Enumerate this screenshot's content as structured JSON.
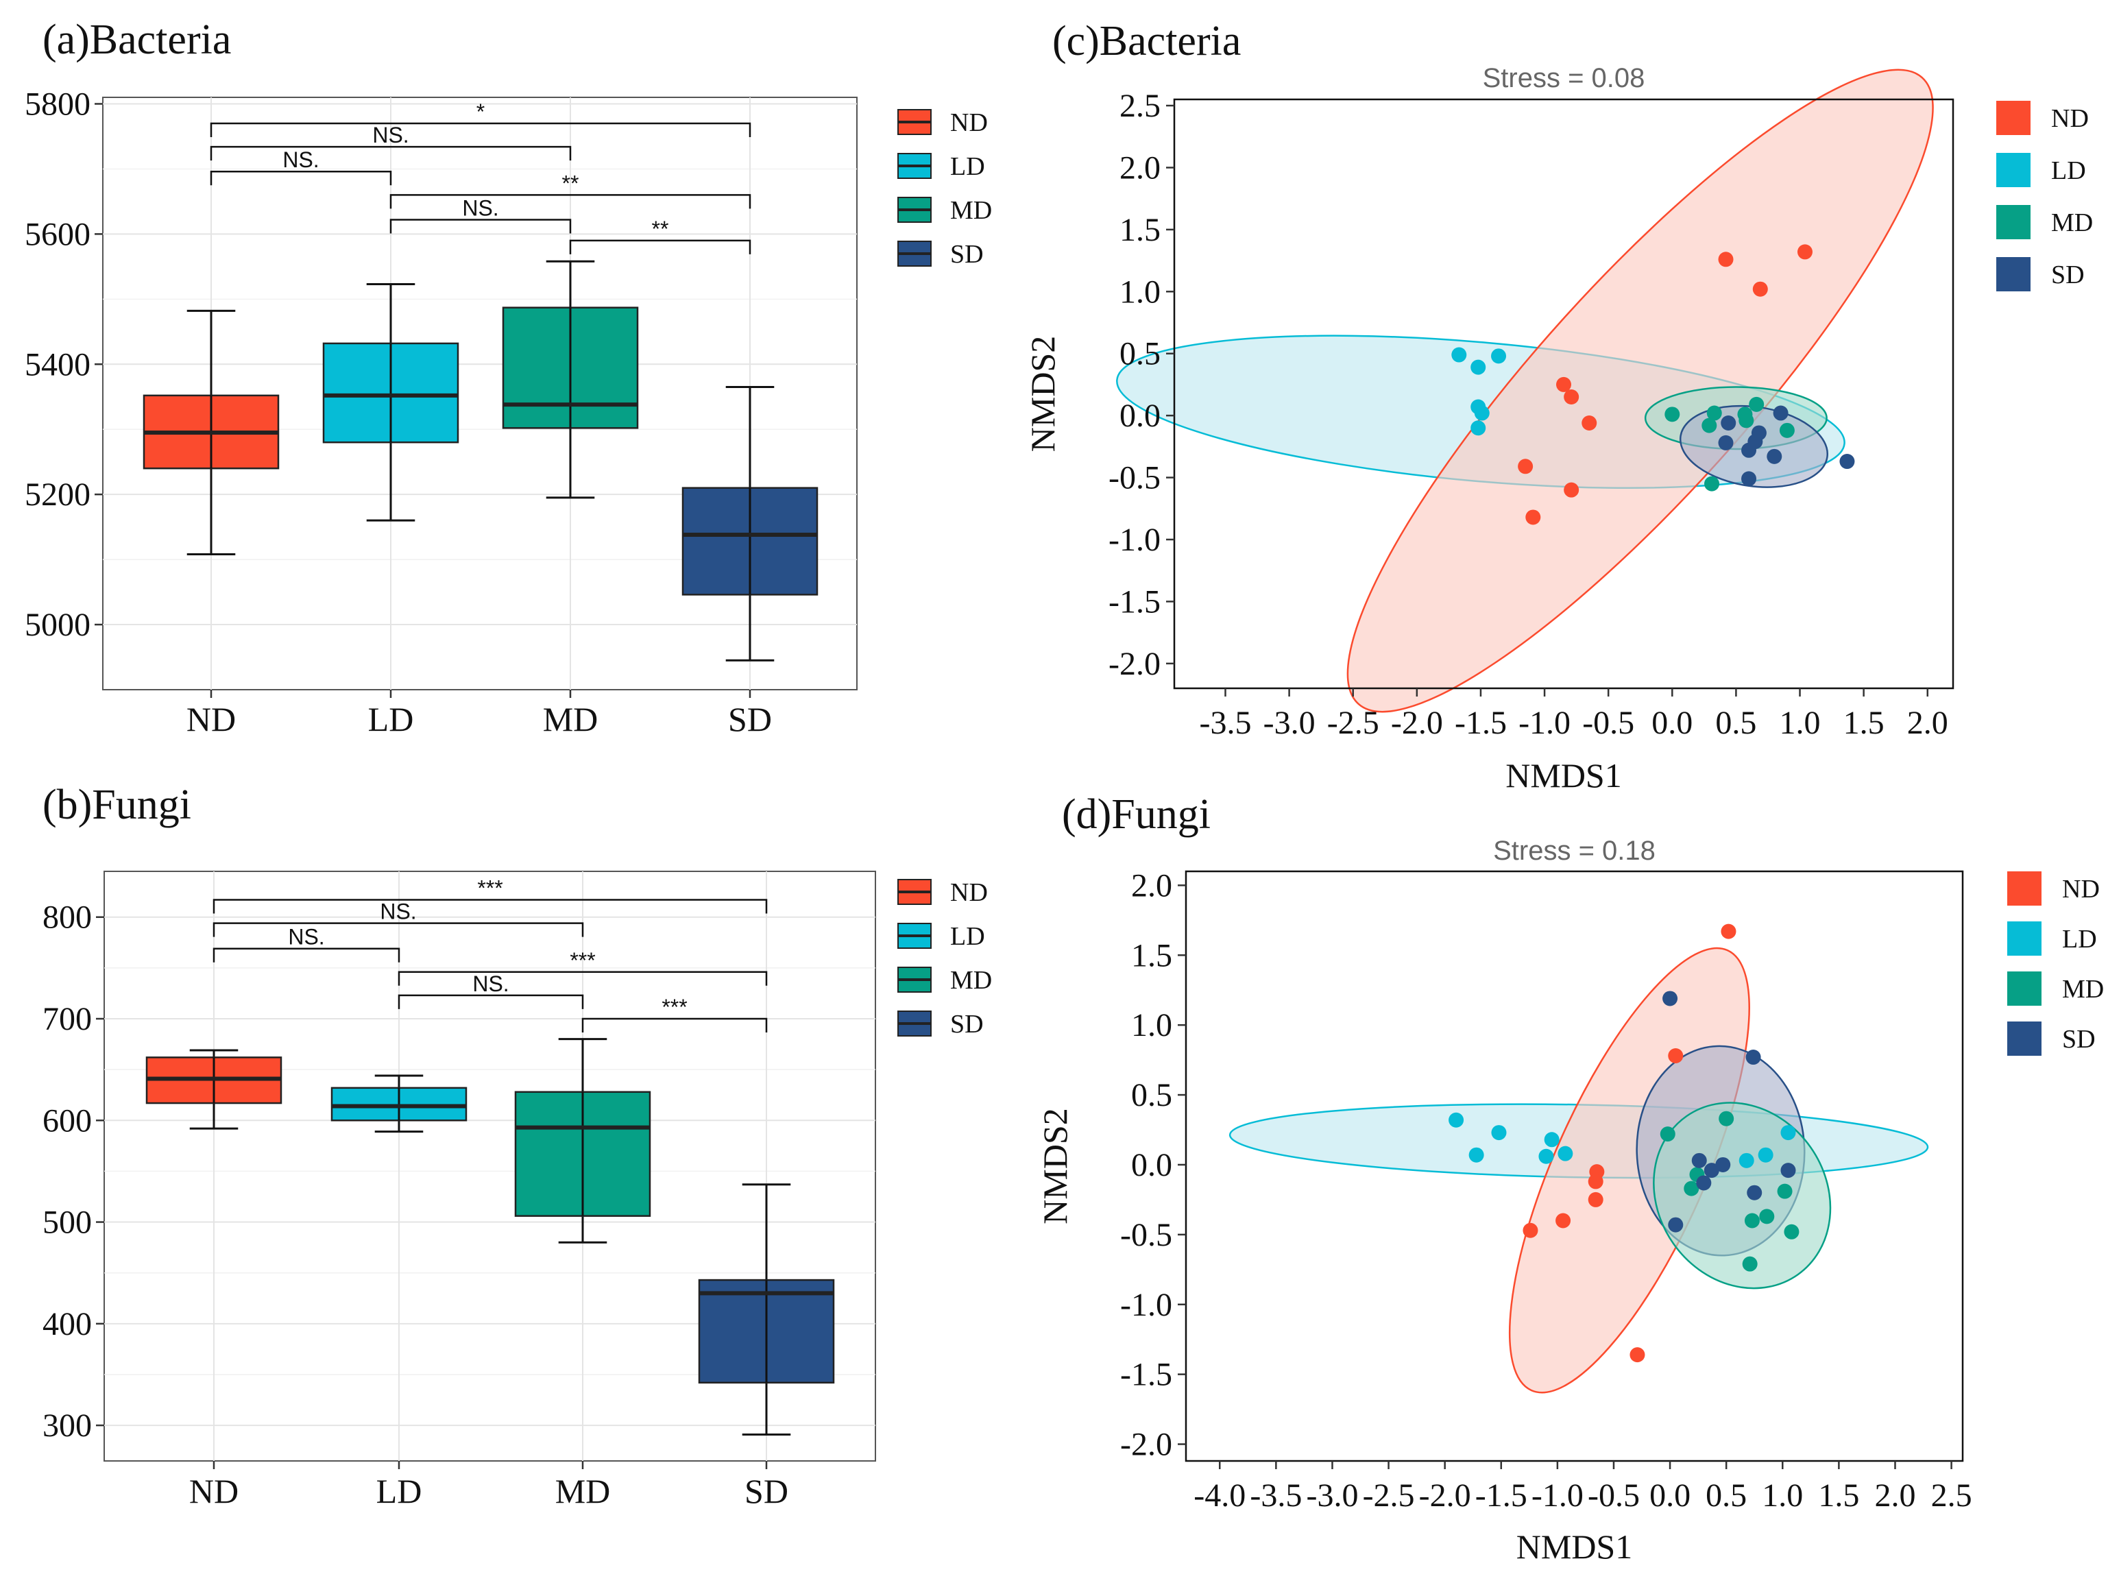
{
  "colors": {
    "ND": "#fb4b2e",
    "LD": "#06bcd6",
    "MD": "#06a086",
    "SD": "#285088",
    "ND_fill": "#fbc9c0",
    "LD_fill": "#bfe9f1",
    "MD_fill": "#a3dccb",
    "SD_fill": "#a9b2cc"
  },
  "legend_labels": [
    "ND",
    "LD",
    "MD",
    "SD"
  ],
  "panels": {
    "a": {
      "title": "(a)Bacteria"
    },
    "b": {
      "title": "(b)Fungi"
    },
    "c": {
      "title": "(c)Bacteria"
    },
    "d": {
      "title": "(d)Fungi"
    }
  },
  "chart_data": [
    {
      "id": "a",
      "type": "box",
      "title": "(a)Bacteria",
      "categories": [
        "ND",
        "LD",
        "MD",
        "SD"
      ],
      "ylim": [
        4900,
        5810
      ],
      "yticks": [
        5000,
        5200,
        5400,
        5600,
        5800
      ],
      "boxes": [
        {
          "group": "ND",
          "min": 5108,
          "q1": 5240,
          "median": 5295,
          "q3": 5352,
          "max": 5482
        },
        {
          "group": "LD",
          "min": 5160,
          "q1": 5280,
          "median": 5352,
          "q3": 5432,
          "max": 5523
        },
        {
          "group": "MD",
          "min": 5195,
          "q1": 5302,
          "median": 5338,
          "q3": 5487,
          "max": 5558
        },
        {
          "group": "SD",
          "min": 4945,
          "q1": 5046,
          "median": 5138,
          "q3": 5210,
          "max": 5365
        }
      ],
      "comparisons": [
        {
          "from": 0,
          "to": 1,
          "y": 5696,
          "label": "NS."
        },
        {
          "from": 0,
          "to": 2,
          "y": 5734,
          "label": "NS."
        },
        {
          "from": 0,
          "to": 3,
          "y": 5770,
          "label": "*"
        },
        {
          "from": 1,
          "to": 2,
          "y": 5622,
          "label": "NS."
        },
        {
          "from": 1,
          "to": 3,
          "y": 5660,
          "label": "**"
        },
        {
          "from": 2,
          "to": 3,
          "y": 5590,
          "label": "**"
        }
      ]
    },
    {
      "id": "b",
      "type": "box",
      "title": "(b)Fungi",
      "categories": [
        "ND",
        "LD",
        "MD",
        "SD"
      ],
      "ylim": [
        265,
        845
      ],
      "yticks": [
        300,
        400,
        500,
        600,
        700,
        800
      ],
      "boxes": [
        {
          "group": "ND",
          "min": 592,
          "q1": 617,
          "median": 641,
          "q3": 662,
          "max": 669
        },
        {
          "group": "LD",
          "min": 589,
          "q1": 600,
          "median": 614,
          "q3": 632,
          "max": 644
        },
        {
          "group": "MD",
          "min": 480,
          "q1": 506,
          "median": 593,
          "q3": 628,
          "max": 680
        },
        {
          "group": "SD",
          "min": 291,
          "q1": 342,
          "median": 430,
          "q3": 443,
          "max": 537
        }
      ],
      "comparisons": [
        {
          "from": 0,
          "to": 1,
          "y": 769,
          "label": "NS."
        },
        {
          "from": 0,
          "to": 2,
          "y": 794,
          "label": "NS."
        },
        {
          "from": 0,
          "to": 3,
          "y": 817,
          "label": "***"
        },
        {
          "from": 1,
          "to": 2,
          "y": 723,
          "label": "NS."
        },
        {
          "from": 1,
          "to": 3,
          "y": 746,
          "label": "***"
        },
        {
          "from": 2,
          "to": 3,
          "y": 700,
          "label": "***"
        }
      ]
    },
    {
      "id": "c",
      "type": "scatter",
      "title": "(c)Bacteria",
      "stress_label": "Stress = 0.08",
      "xlabel": "NMDS1",
      "ylabel": "NMDS2",
      "xlim": [
        -3.9,
        2.2
      ],
      "ylim": [
        -2.2,
        2.55
      ],
      "xticks": [
        -3.5,
        -3.0,
        -2.5,
        -2.0,
        -1.5,
        -1.0,
        -0.5,
        0.0,
        0.5,
        1.0,
        1.5,
        2.0
      ],
      "xtick_labels": [
        "-3.5",
        "-3.0",
        "-2.5",
        "-2.0",
        "-1.5",
        "-1.0",
        "-0.5",
        "0.0",
        "0.5",
        "1.0",
        "1.5",
        "2.0"
      ],
      "yticks": [
        -2.0,
        -1.5,
        -1.0,
        -0.5,
        0.0,
        0.5,
        1.0,
        1.5,
        2.0,
        2.5
      ],
      "ytick_labels": [
        "-2.0",
        "-1.5",
        "-1.0",
        "-0.5",
        "0.0",
        "0.5",
        "1.0",
        "1.5",
        "2.0",
        "2.5"
      ],
      "ellipses": [
        {
          "group": "LD",
          "cx": -1.5,
          "cy": 0.03,
          "rx": 2.86,
          "ry": 0.56,
          "angle": -5
        },
        {
          "group": "ND",
          "cx": -0.25,
          "cy": 0.2,
          "rx": 3.3,
          "ry": 0.85,
          "angle": 48
        },
        {
          "group": "MD",
          "cx": 0.5,
          "cy": -0.02,
          "rx": 0.71,
          "ry": 0.25,
          "angle": 0
        },
        {
          "group": "SD",
          "cx": 0.64,
          "cy": -0.25,
          "rx": 0.58,
          "ry": 0.32,
          "angle": -8
        }
      ],
      "series": [
        {
          "name": "ND",
          "points": [
            [
              0.42,
              1.26
            ],
            [
              1.04,
              1.32
            ],
            [
              0.69,
              1.02
            ],
            [
              -0.85,
              0.25
            ],
            [
              -0.79,
              0.15
            ],
            [
              -0.65,
              -0.06
            ],
            [
              -1.15,
              -0.41
            ],
            [
              -0.79,
              -0.6
            ],
            [
              -1.09,
              -0.82
            ]
          ]
        },
        {
          "name": "LD",
          "points": [
            [
              -1.67,
              0.49
            ],
            [
              -1.52,
              0.39
            ],
            [
              -1.36,
              0.48
            ],
            [
              -1.52,
              0.07
            ],
            [
              -1.49,
              0.02
            ],
            [
              -1.52,
              -0.1
            ]
          ]
        },
        {
          "name": "MD",
          "points": [
            [
              0.0,
              0.01
            ],
            [
              0.33,
              0.02
            ],
            [
              0.57,
              0.01
            ],
            [
              0.66,
              0.09
            ],
            [
              0.29,
              -0.08
            ],
            [
              0.58,
              -0.04
            ],
            [
              0.9,
              -0.12
            ],
            [
              0.31,
              -0.55
            ]
          ]
        },
        {
          "name": "SD",
          "points": [
            [
              0.44,
              -0.06
            ],
            [
              0.85,
              0.02
            ],
            [
              0.68,
              -0.14
            ],
            [
              0.65,
              -0.21
            ],
            [
              0.42,
              -0.22
            ],
            [
              0.6,
              -0.28
            ],
            [
              0.8,
              -0.33
            ],
            [
              1.37,
              -0.37
            ],
            [
              0.6,
              -0.51
            ]
          ]
        }
      ]
    },
    {
      "id": "d",
      "type": "scatter",
      "title": "(d)Fungi",
      "stress_label": "Stress = 0.18",
      "xlabel": "NMDS1",
      "ylabel": "NMDS2",
      "xlim": [
        -4.3,
        2.6
      ],
      "ylim": [
        -2.12,
        2.1
      ],
      "xticks": [
        -4.0,
        -3.5,
        -3.0,
        -2.5,
        -2.0,
        -1.5,
        -1.0,
        -0.5,
        0.0,
        0.5,
        1.0,
        1.5,
        2.0,
        2.5
      ],
      "xtick_labels": [
        "-4.0",
        "-3.5",
        "-3.0",
        "-2.5",
        "-2.0",
        "-1.5",
        "-1.0",
        "-0.5",
        "0.0",
        "0.5",
        "1.0",
        "1.5",
        "2.0",
        "2.5"
      ],
      "yticks": [
        -2.0,
        -1.5,
        -1.0,
        -0.5,
        0.0,
        0.5,
        1.0,
        1.5,
        2.0
      ],
      "ytick_labels": [
        "-2.0",
        "-1.5",
        "-1.0",
        "-0.5",
        "0.0",
        "0.5",
        "1.0",
        "1.5",
        "2.0"
      ],
      "ellipses": [
        {
          "group": "LD",
          "cx": -0.81,
          "cy": 0.17,
          "rx": 3.1,
          "ry": 0.26,
          "angle": -1
        },
        {
          "group": "ND",
          "cx": -0.36,
          "cy": -0.04,
          "rx": 2.14,
          "ry": 0.54,
          "angle": 66
        },
        {
          "group": "SD",
          "cx": 0.45,
          "cy": 0.1,
          "rx": 0.93,
          "ry": 0.6,
          "angle": 92
        },
        {
          "group": "MD",
          "cx": 0.64,
          "cy": -0.22,
          "rx": 0.86,
          "ry": 0.6,
          "angle": -55
        }
      ],
      "series": [
        {
          "name": "ND",
          "points": [
            [
              0.52,
              1.67
            ],
            [
              0.05,
              0.78
            ],
            [
              -0.65,
              -0.05
            ],
            [
              -0.66,
              -0.12
            ],
            [
              -0.66,
              -0.25
            ],
            [
              -0.95,
              -0.4
            ],
            [
              -1.24,
              -0.47
            ],
            [
              -0.29,
              -1.36
            ]
          ]
        },
        {
          "name": "LD",
          "points": [
            [
              -1.9,
              0.32
            ],
            [
              -1.72,
              0.07
            ],
            [
              -1.52,
              0.23
            ],
            [
              -1.05,
              0.18
            ],
            [
              -1.1,
              0.06
            ],
            [
              -0.93,
              0.08
            ],
            [
              0.68,
              0.03
            ],
            [
              0.85,
              0.07
            ],
            [
              1.05,
              0.23
            ]
          ]
        },
        {
          "name": "MD",
          "points": [
            [
              -0.02,
              0.22
            ],
            [
              0.5,
              0.33
            ],
            [
              0.19,
              -0.17
            ],
            [
              0.24,
              -0.07
            ],
            [
              1.02,
              -0.19
            ],
            [
              0.73,
              -0.4
            ],
            [
              0.86,
              -0.37
            ],
            [
              1.08,
              -0.48
            ],
            [
              0.71,
              -0.71
            ]
          ]
        },
        {
          "name": "SD",
          "points": [
            [
              0.0,
              1.19
            ],
            [
              0.74,
              0.77
            ],
            [
              0.26,
              0.03
            ],
            [
              0.3,
              -0.13
            ],
            [
              0.37,
              -0.04
            ],
            [
              0.47,
              0.0
            ],
            [
              0.75,
              -0.2
            ],
            [
              1.05,
              -0.04
            ],
            [
              0.05,
              -0.43
            ]
          ]
        }
      ]
    }
  ]
}
